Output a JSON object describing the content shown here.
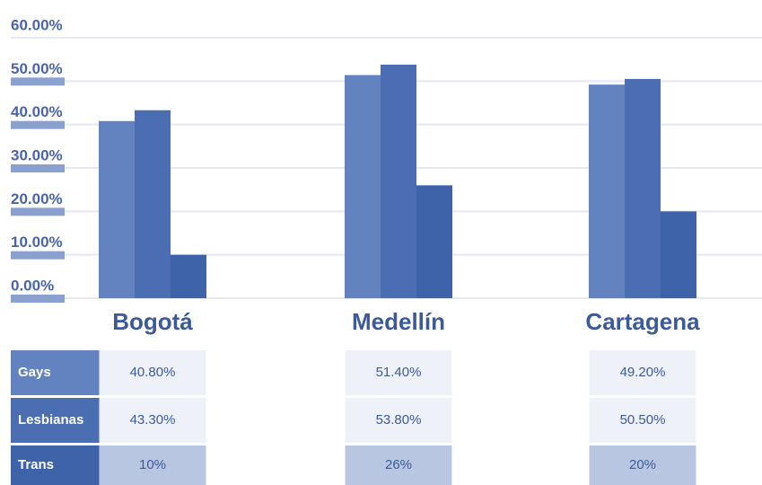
{
  "chart_data": {
    "type": "bar",
    "categories": [
      "Bogotá",
      "Medellín",
      "Cartagena"
    ],
    "series": [
      {
        "name": "Gays",
        "color": "#6383c0",
        "values": [
          40.8,
          51.4,
          49.2
        ],
        "value_labels": [
          "40.80%",
          "51.40%",
          "49.20%"
        ]
      },
      {
        "name": "Lesbianas",
        "color": "#4b6db2",
        "values": [
          43.3,
          53.8,
          50.5
        ],
        "value_labels": [
          "43.30%",
          "53.80%",
          "50.50%"
        ]
      },
      {
        "name": "Trans",
        "color": "#3e63a9",
        "values": [
          10,
          26,
          20
        ],
        "value_labels": [
          "10%",
          "26%",
          "20%"
        ]
      }
    ],
    "ylim": [
      0,
      60
    ],
    "yticks": [
      {
        "value": 0,
        "label": "0.00%"
      },
      {
        "value": 10,
        "label": "10.00%"
      },
      {
        "value": 20,
        "label": "20.00%"
      },
      {
        "value": 30,
        "label": "30.00%"
      },
      {
        "value": 40,
        "label": "40.00%"
      },
      {
        "value": 50,
        "label": "50.00%"
      },
      {
        "value": 60,
        "label": "60.00%"
      }
    ],
    "grid": true
  }
}
